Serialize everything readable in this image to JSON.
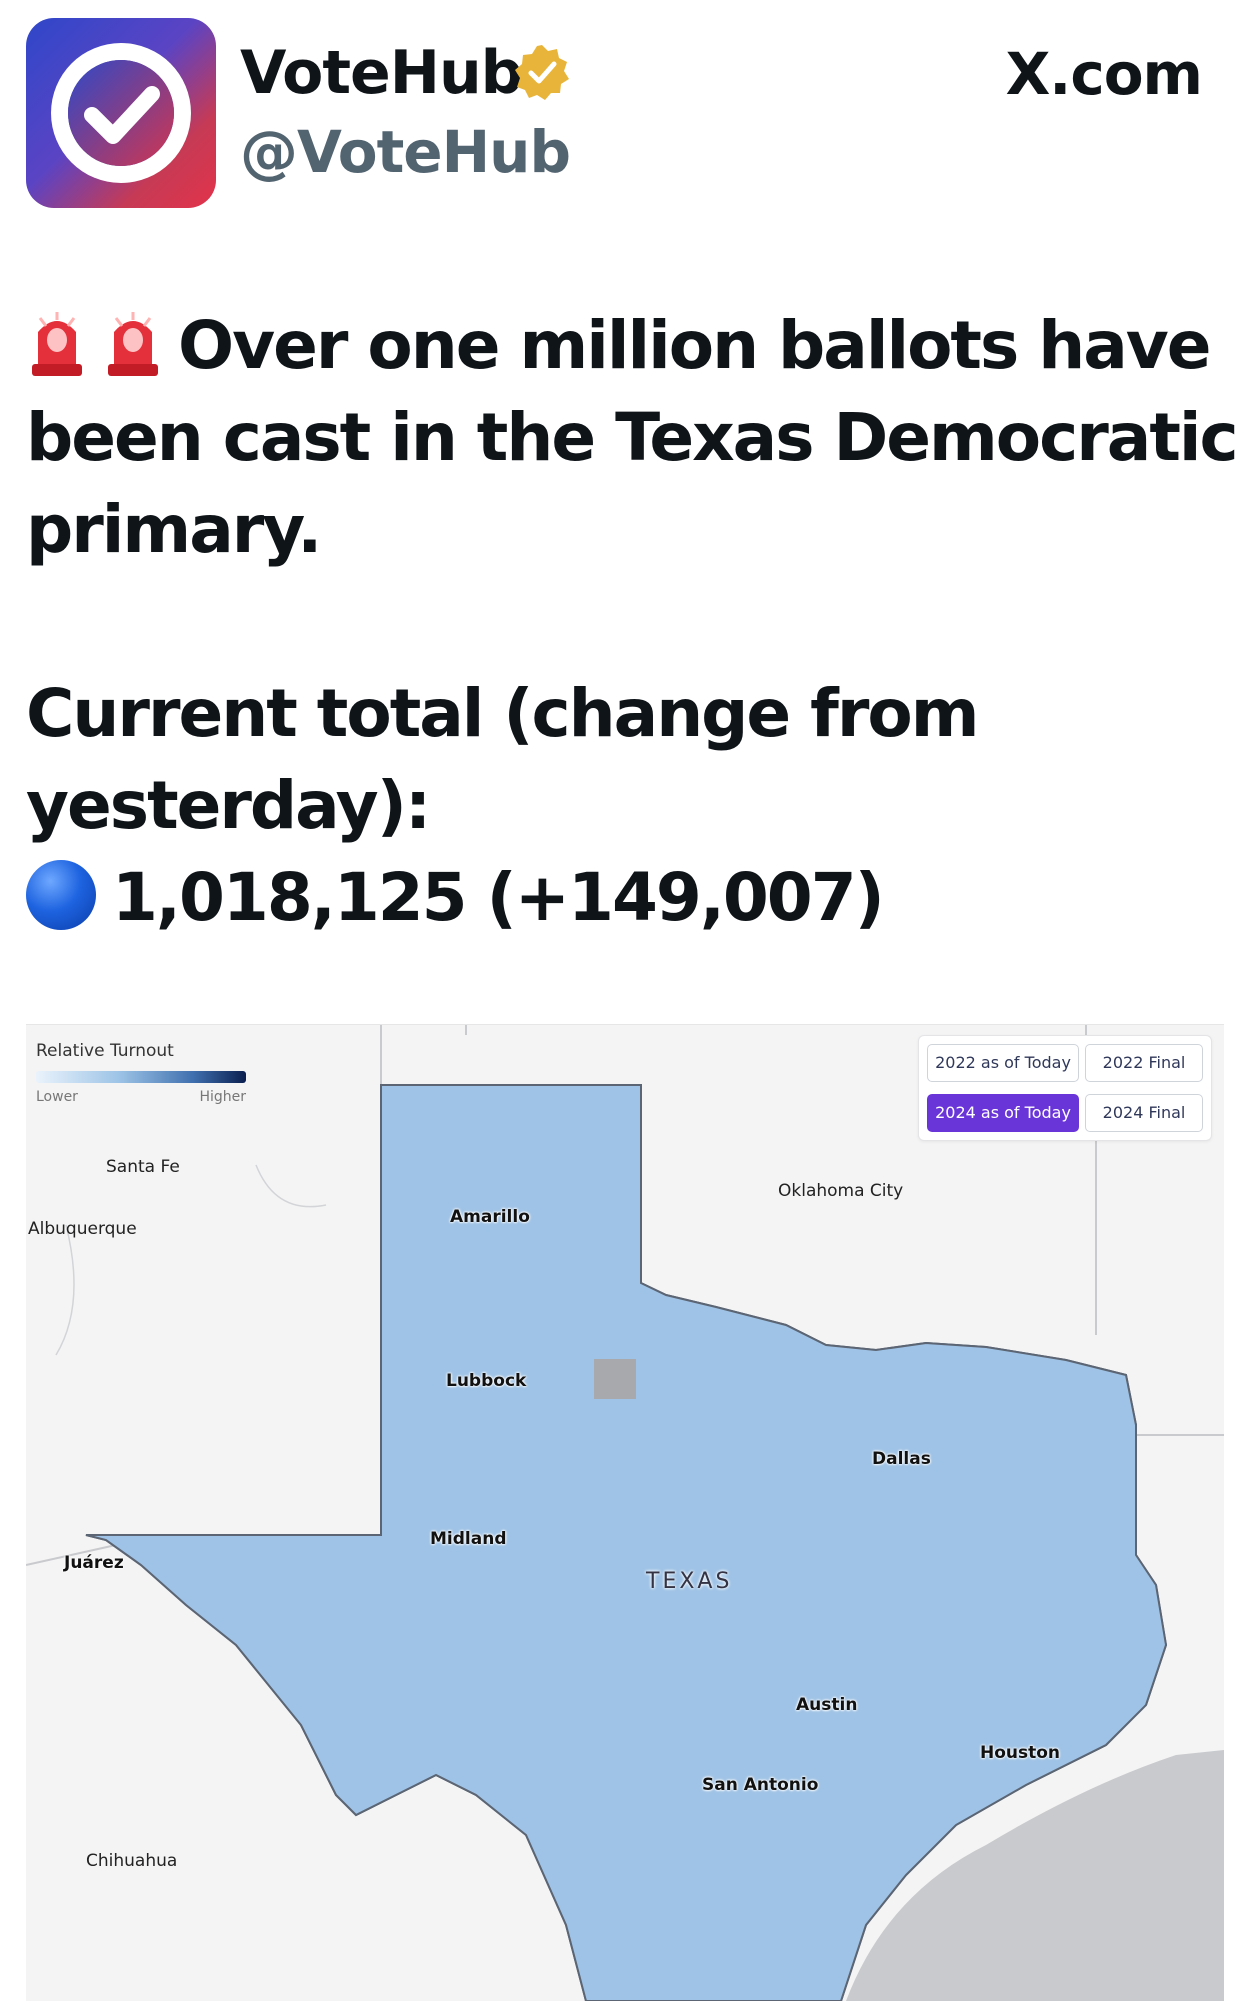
{
  "header": {
    "display_name": "VoteHub",
    "handle": "@VoteHub",
    "site": "X.com"
  },
  "icons": {
    "avatar": "votehub-checkmark-logo",
    "verified": "verified-badge-icon",
    "siren": "police-siren-emoji",
    "blue_circle": "blue-circle-emoji"
  },
  "tweet": {
    "line1": "Over one million ballots have",
    "line2": "been cast in the Texas Democratic",
    "line3": "primary.",
    "line4": "Current total (change from",
    "line5": "yesterday):",
    "total": "1,018,125 (+149,007)"
  },
  "map": {
    "legend": {
      "title": "Relative Turnout",
      "low": "Lower",
      "high": "Higher"
    },
    "toggles": {
      "t2022_today": "2022 as of Today",
      "t2022_final": "2022 Final",
      "t2024_today": "2024 as of Today",
      "t2024_final": "2024 Final",
      "active": "2024 as of Today"
    },
    "external_cities": {
      "santa_fe": "Santa Fe",
      "albuquerque": "Albuquerque",
      "oklahoma_city": "Oklahoma City",
      "juarez": "Juárez",
      "chihuahua": "Chihuahua"
    },
    "texas_cities": {
      "amarillo": "Amarillo",
      "lubbock": "Lubbock",
      "midland": "Midland",
      "dallas": "Dallas",
      "austin": "Austin",
      "houston": "Houston",
      "san_antonio": "San Antonio"
    },
    "state_label": "TEXAS",
    "colors": {
      "lowest": "#dbe9f8",
      "low": "#a9c9ea",
      "mid": "#5b8fc8",
      "high": "#2f5f9f",
      "highest": "#0c1f4d",
      "no_data": "#a7a9ad",
      "accent_active_toggle": "#6a35d8"
    }
  }
}
